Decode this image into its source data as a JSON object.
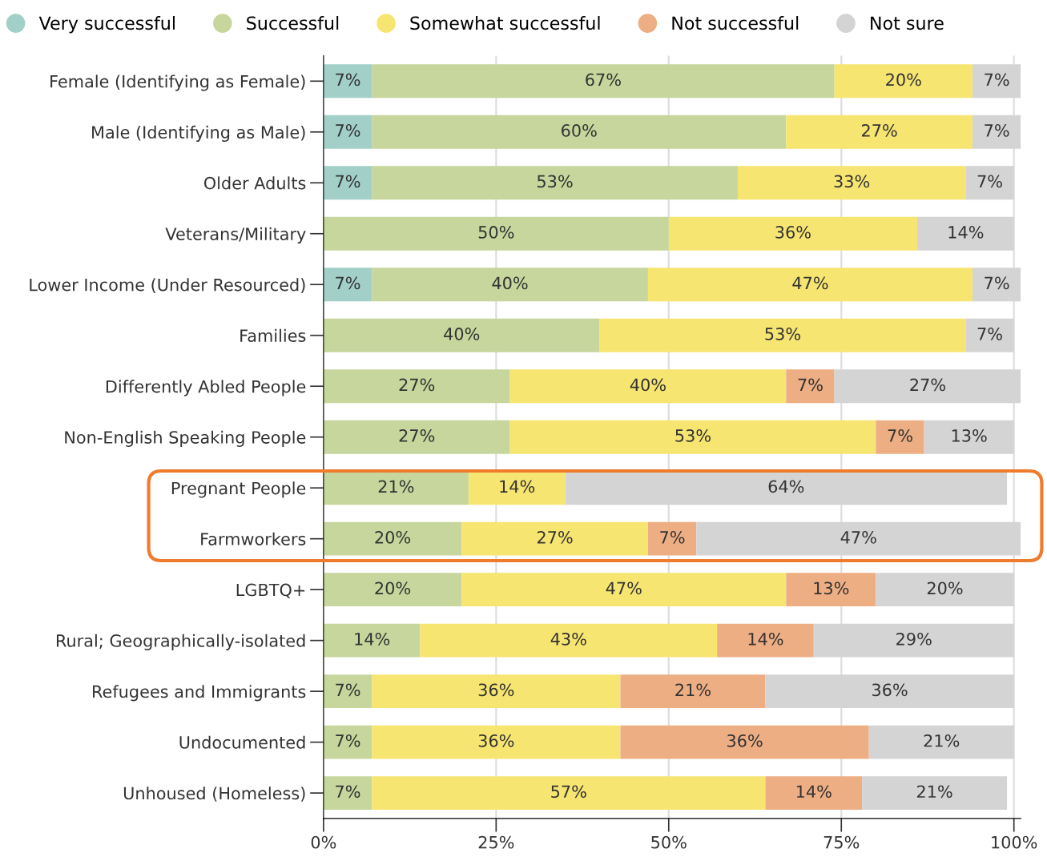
{
  "chart_data": {
    "type": "bar",
    "orientation": "horizontal",
    "stacked": true,
    "grid": "x",
    "legend": "top",
    "marker": "circle",
    "categories": [
      "Female (Identifying as Female)",
      "Male (Identifying as Male)",
      "Older Adults",
      "Veterans/Military",
      "Lower Income (Under Resourced)",
      "Families",
      "Differently Abled People",
      "Non-English Speaking People",
      "Pregnant People",
      "Farmworkers",
      "LGBTQ+",
      "Rural; Geographically-isolated",
      "Refugees and Immigrants",
      "Undocumented",
      "Unhoused (Homeless)"
    ],
    "series": [
      {
        "name": "Very successful",
        "color": "#a2d0c9",
        "values": [
          7,
          7,
          7,
          null,
          7,
          null,
          null,
          null,
          null,
          null,
          null,
          null,
          null,
          null,
          null
        ],
        "value_labels": [
          "7%",
          "7%",
          "7%",
          null,
          "7%",
          null,
          null,
          null,
          null,
          null,
          null,
          null,
          null,
          null,
          null
        ]
      },
      {
        "name": "Successful",
        "color": "#c6d69c",
        "values": [
          67,
          60,
          53,
          50,
          40,
          40,
          27,
          27,
          21,
          20,
          20,
          14,
          7,
          7,
          7
        ],
        "value_labels": [
          "67%",
          "60%",
          "53%",
          "50%",
          "40%",
          "40%",
          "27%",
          "27%",
          "21%",
          "20%",
          "20%",
          "14%",
          "7%",
          "7%",
          "7%"
        ]
      },
      {
        "name": "Somewhat successful",
        "color": "#f7e571",
        "values": [
          20,
          27,
          33,
          36,
          47,
          53,
          40,
          53,
          14,
          27,
          47,
          43,
          36,
          36,
          57
        ],
        "value_labels": [
          "20%",
          "27%",
          "33%",
          "36%",
          "47%",
          "53%",
          "40%",
          "53%",
          "14%",
          "27%",
          "47%",
          "43%",
          "36%",
          "36%",
          "57%"
        ]
      },
      {
        "name": "Not successful",
        "color": "#eeae84",
        "values": [
          null,
          null,
          null,
          null,
          null,
          null,
          7,
          7,
          null,
          7,
          13,
          14,
          21,
          36,
          14
        ],
        "value_labels": [
          null,
          null,
          null,
          null,
          null,
          null,
          "7%",
          "7%",
          null,
          "7%",
          "13%",
          "14%",
          "21%",
          "36%",
          "14%"
        ]
      },
      {
        "name": "Not sure",
        "color": "#d4d4d4",
        "values": [
          7,
          7,
          7,
          14,
          7,
          7,
          27,
          13,
          64,
          47,
          20,
          29,
          36,
          21,
          21
        ],
        "value_labels": [
          "7%",
          "7%",
          "7%",
          "14%",
          "7%",
          "7%",
          "27%",
          "13%",
          "64%",
          "47%",
          "20%",
          "29%",
          "36%",
          "21%",
          "21%"
        ]
      }
    ],
    "xlim": [
      0,
      101
    ],
    "xticks": [
      {
        "value": 0,
        "label": "0%"
      },
      {
        "value": 25,
        "label": "25%"
      },
      {
        "value": 50,
        "label": "50%"
      },
      {
        "value": 75,
        "label": "75%"
      },
      {
        "value": 100,
        "label": "100%"
      }
    ]
  }
}
